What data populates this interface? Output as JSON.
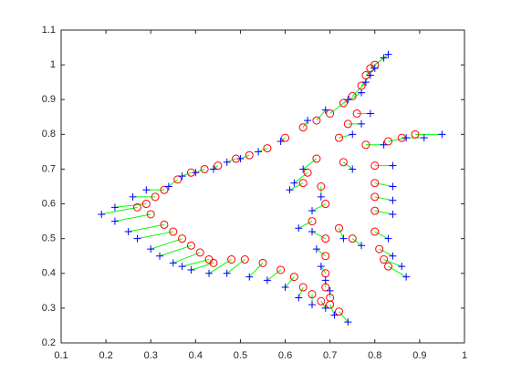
{
  "chart_data": {
    "type": "scatter",
    "xlim": [
      0.1,
      1
    ],
    "xticks": [
      0.1,
      0.2,
      0.3,
      0.4,
      0.5,
      0.6,
      0.7,
      0.8,
      0.9,
      1
    ],
    "ylim": [
      0.2,
      1.1
    ],
    "yticks": [
      0.2,
      0.3,
      0.4,
      0.5,
      0.6,
      0.7,
      0.8,
      0.9,
      1,
      1.1
    ],
    "pair_line_color": "#00ff00",
    "series": [
      {
        "marker": "+",
        "color": "#0000ff",
        "x": [
          0.83,
          0.82,
          0.8,
          0.79,
          0.78,
          0.77,
          0.74,
          0.69,
          0.65,
          0.59,
          0.54,
          0.5,
          0.47,
          0.44,
          0.4,
          0.37,
          0.34,
          0.29,
          0.26,
          0.22,
          0.19,
          0.22,
          0.25,
          0.27,
          0.3,
          0.32,
          0.35,
          0.37,
          0.39,
          0.43,
          0.47,
          0.52,
          0.56,
          0.6,
          0.63,
          0.66,
          0.69,
          0.71,
          0.74,
          0.66,
          0.67,
          0.68,
          0.69,
          0.7,
          0.63,
          0.73,
          0.77,
          0.82,
          0.87,
          0.91,
          0.95,
          0.84,
          0.84,
          0.84,
          0.84,
          0.83,
          0.84,
          0.86,
          0.87,
          0.64,
          0.62,
          0.61,
          0.68,
          0.66,
          0.75,
          0.77,
          0.79,
          0.75
        ],
        "y": [
          1.03,
          1.02,
          0.99,
          0.97,
          0.95,
          0.92,
          0.9,
          0.87,
          0.84,
          0.78,
          0.75,
          0.73,
          0.72,
          0.7,
          0.69,
          0.68,
          0.65,
          0.64,
          0.62,
          0.59,
          0.57,
          0.55,
          0.52,
          0.5,
          0.47,
          0.45,
          0.43,
          0.42,
          0.41,
          0.4,
          0.4,
          0.39,
          0.38,
          0.36,
          0.33,
          0.31,
          0.3,
          0.28,
          0.26,
          0.52,
          0.47,
          0.42,
          0.38,
          0.35,
          0.53,
          0.5,
          0.48,
          0.77,
          0.79,
          0.79,
          0.8,
          0.71,
          0.65,
          0.61,
          0.57,
          0.5,
          0.45,
          0.42,
          0.39,
          0.7,
          0.66,
          0.64,
          0.62,
          0.58,
          0.8,
          0.83,
          0.86,
          0.7
        ]
      },
      {
        "marker": "o",
        "color": "#ff0000",
        "x": [
          0.8,
          0.79,
          0.78,
          0.77,
          0.75,
          0.73,
          0.7,
          0.67,
          0.64,
          0.6,
          0.56,
          0.52,
          0.49,
          0.45,
          0.42,
          0.39,
          0.36,
          0.33,
          0.31,
          0.29,
          0.27,
          0.3,
          0.33,
          0.35,
          0.37,
          0.39,
          0.41,
          0.43,
          0.44,
          0.48,
          0.51,
          0.55,
          0.59,
          0.62,
          0.64,
          0.66,
          0.68,
          0.7,
          0.72,
          0.69,
          0.69,
          0.69,
          0.69,
          0.7,
          0.66,
          0.72,
          0.75,
          0.78,
          0.83,
          0.86,
          0.89,
          0.8,
          0.8,
          0.8,
          0.8,
          0.8,
          0.81,
          0.82,
          0.83,
          0.67,
          0.65,
          0.64,
          0.68,
          0.69,
          0.72,
          0.74,
          0.76,
          0.73
        ],
        "y": [
          1.0,
          0.99,
          0.97,
          0.94,
          0.91,
          0.89,
          0.86,
          0.84,
          0.82,
          0.79,
          0.76,
          0.74,
          0.73,
          0.71,
          0.7,
          0.69,
          0.67,
          0.64,
          0.62,
          0.6,
          0.59,
          0.57,
          0.54,
          0.52,
          0.5,
          0.48,
          0.46,
          0.44,
          0.43,
          0.44,
          0.44,
          0.43,
          0.41,
          0.39,
          0.36,
          0.34,
          0.32,
          0.31,
          0.29,
          0.5,
          0.45,
          0.4,
          0.36,
          0.33,
          0.55,
          0.53,
          0.5,
          0.77,
          0.78,
          0.79,
          0.8,
          0.71,
          0.66,
          0.62,
          0.58,
          0.52,
          0.47,
          0.44,
          0.42,
          0.73,
          0.69,
          0.66,
          0.65,
          0.6,
          0.79,
          0.83,
          0.86,
          0.72
        ]
      }
    ]
  }
}
